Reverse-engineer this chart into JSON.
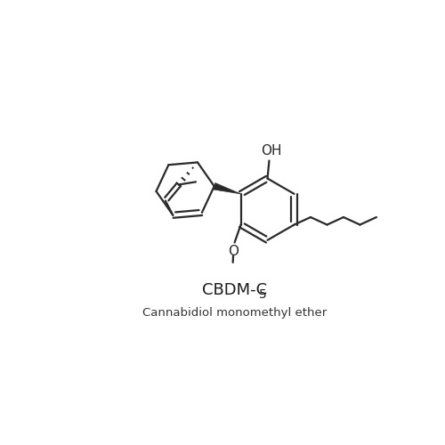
{
  "line_color": "#2a2a2a",
  "bg_color": "#ffffff",
  "lw": 1.6,
  "title_main": "CBDM-C",
  "title_sub": "5",
  "title_name": "Cannabidiol monomethyl ether"
}
